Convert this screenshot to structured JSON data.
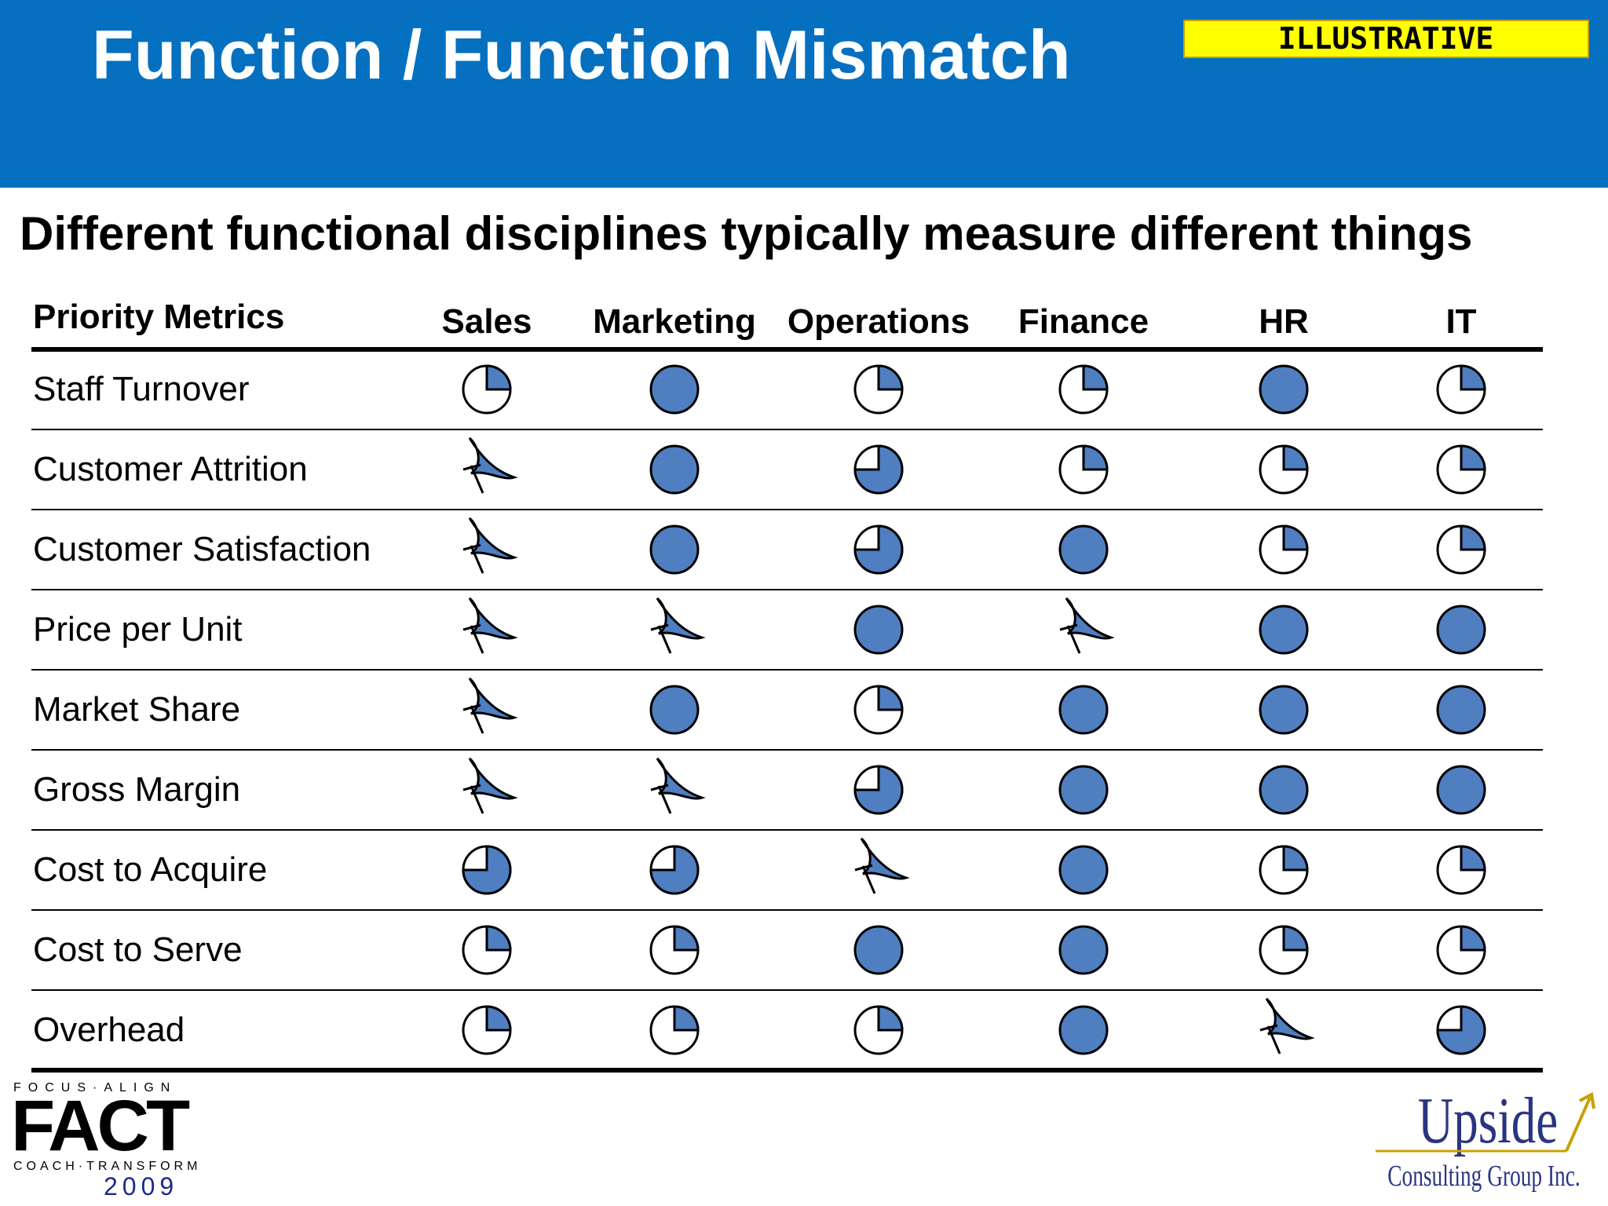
{
  "header": {
    "title": "Function / Function Mismatch",
    "badge": "ILLUSTRATIVE"
  },
  "subtitle": "Different functional disciplines typically measure different things",
  "table": {
    "columns": [
      "Priority Metrics",
      "Sales",
      "Marketing",
      "Operations",
      "Finance",
      "HR",
      "IT"
    ],
    "rows": [
      {
        "label": "Staff Turnover",
        "values": [
          0.25,
          1,
          0.25,
          0.25,
          1,
          0.25
        ]
      },
      {
        "label": "Customer Attrition",
        "values": [
          0,
          1,
          0.75,
          0.25,
          0.25,
          0.25
        ]
      },
      {
        "label": "Customer Satisfaction",
        "values": [
          0,
          1,
          0.75,
          1,
          0.25,
          0.25
        ]
      },
      {
        "label": "Price per Unit",
        "values": [
          0,
          0,
          1,
          0,
          1,
          1
        ]
      },
      {
        "label": "Market Share",
        "values": [
          0,
          1,
          0.25,
          1,
          1,
          1
        ]
      },
      {
        "label": "Gross Margin",
        "values": [
          0,
          0,
          0.75,
          1,
          1,
          1
        ]
      },
      {
        "label": "Cost to Acquire",
        "values": [
          0.75,
          0.75,
          0,
          1,
          0.25,
          0.25
        ]
      },
      {
        "label": "Cost to Serve",
        "values": [
          0.25,
          0.25,
          1,
          1,
          0.25,
          0.25
        ]
      },
      {
        "label": "Overhead",
        "values": [
          0.25,
          0.25,
          0.25,
          1,
          0,
          0.75
        ]
      }
    ]
  },
  "logos": {
    "fact": {
      "top": "FOCUS·ALIGN",
      "main": "FACT",
      "bottom": "COACH·TRANSFORM",
      "year": "2009"
    },
    "upside": {
      "main": "Upside",
      "sub": "Consulting Group Inc."
    }
  }
}
